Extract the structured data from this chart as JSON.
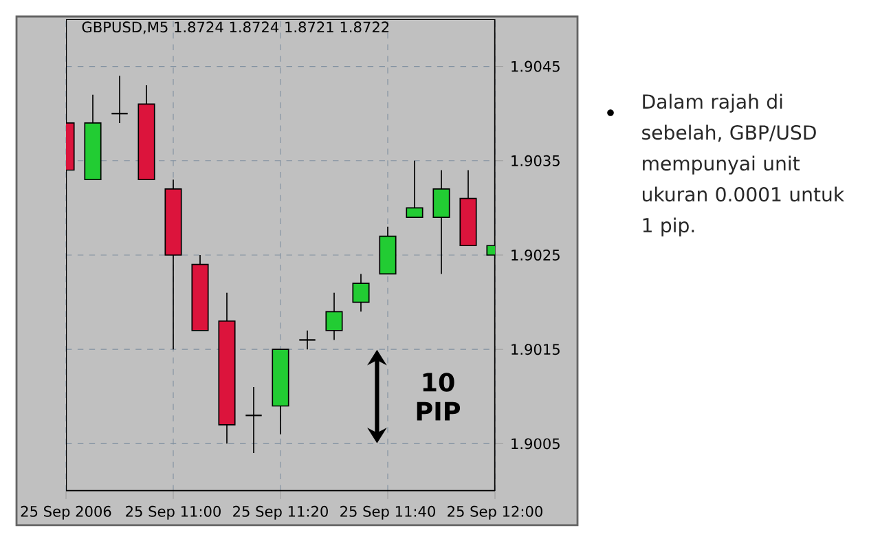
{
  "chart_data": {
    "type": "candlestick",
    "title": "GBPUSD,M5 1.8724 1.8724 1.8721 1.8722",
    "x": [
      "2006-09-25T10:40",
      "2006-09-25T10:45",
      "2006-09-25T10:50",
      "2006-09-25T10:55",
      "2006-09-25T11:00",
      "2006-09-25T11:05",
      "2006-09-25T11:10",
      "2006-09-25T11:15",
      "2006-09-25T11:20",
      "2006-09-25T11:25",
      "2006-09-25T11:30",
      "2006-09-25T11:35",
      "2006-09-25T11:40",
      "2006-09-25T11:45",
      "2006-09-25T11:50",
      "2006-09-25T11:55",
      "2006-09-25T12:00"
    ],
    "ohlc": [
      [
        1.9039,
        1.904,
        1.9031,
        1.9034
      ],
      [
        1.9033,
        1.9042,
        1.9033,
        1.9039
      ],
      [
        1.904,
        1.9044,
        1.9039,
        1.904
      ],
      [
        1.9041,
        1.9043,
        1.9033,
        1.9033
      ],
      [
        1.9032,
        1.9033,
        1.9015,
        1.9025
      ],
      [
        1.9024,
        1.9025,
        1.9017,
        1.9017
      ],
      [
        1.9018,
        1.9021,
        1.9005,
        1.9007
      ],
      [
        1.9008,
        1.9011,
        1.9004,
        1.9008
      ],
      [
        1.9009,
        1.9015,
        1.9006,
        1.9015
      ],
      [
        1.9016,
        1.9017,
        1.9015,
        1.9016
      ],
      [
        1.9017,
        1.9021,
        1.9016,
        1.9019
      ],
      [
        1.902,
        1.9023,
        1.9019,
        1.9022
      ],
      [
        1.9023,
        1.9028,
        1.9023,
        1.9027
      ],
      [
        1.9029,
        1.9035,
        1.9029,
        1.903
      ],
      [
        1.9029,
        1.9034,
        1.9023,
        1.9032
      ],
      [
        1.9031,
        1.9034,
        1.9026,
        1.9026
      ],
      [
        1.9025,
        1.9029,
        1.9025,
        1.9026
      ]
    ],
    "colors": [
      "#dc143c",
      "#22cc33",
      "#000000",
      "#dc143c",
      "#dc143c",
      "#dc143c",
      "#dc143c",
      "#000000",
      "#22cc33",
      "#000000",
      "#22cc33",
      "#22cc33",
      "#22cc33",
      "#22cc33",
      "#22cc33",
      "#dc143c",
      "#22cc33"
    ],
    "xlim": [
      "2006-09-25T10:40",
      "2006-09-25T12:00"
    ],
    "xticks": [
      {
        "value": "2006-09-25T10:40",
        "label": "25 Sep 2006"
      },
      {
        "value": "2006-09-25T11:00",
        "label": "25 Sep 11:00"
      },
      {
        "value": "2006-09-25T11:20",
        "label": "25 Sep 11:20"
      },
      {
        "value": "2006-09-25T11:40",
        "label": "25 Sep 11:40"
      },
      {
        "value": "2006-09-25T12:00",
        "label": "25 Sep 12:00"
      }
    ],
    "ylim": [
      1.9,
      1.905
    ],
    "yticks": [
      1.9005,
      1.9015,
      1.9025,
      1.9035,
      1.9045
    ],
    "grid": true,
    "annotations": [
      "10 PIP",
      "Dalam rajah di sebelah, GBP/USD mempunyai unit ukuran 0.0001 untuk 1 pip."
    ]
  }
}
